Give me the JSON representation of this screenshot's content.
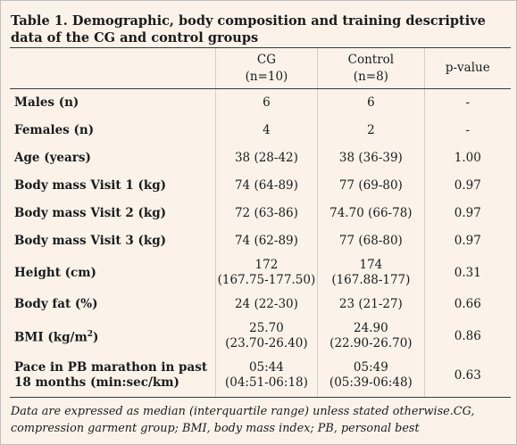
{
  "table": {
    "title": "Table 1. Demographic, body composition and training descriptive data of the CG and control groups",
    "headers": {
      "cg_line1": "CG",
      "cg_line2": "(n=10)",
      "control_line1": "Control",
      "control_line2": "(n=8)",
      "pvalue": "p-value"
    },
    "rows": [
      {
        "label": "Males (n)",
        "cg": "6",
        "control": "6",
        "p": "-"
      },
      {
        "label": "Females (n)",
        "cg": "4",
        "control": "2",
        "p": "-"
      },
      {
        "label": "Age (years)",
        "cg": "38 (28-42)",
        "control": "38 (36-39)",
        "p": "1.00"
      },
      {
        "label": "Body mass Visit 1 (kg)",
        "cg": "74 (64-89)",
        "control": "77 (69-80)",
        "p": "0.97"
      },
      {
        "label": "Body mass Visit 2 (kg)",
        "cg": "72 (63-86)",
        "control": "74.70 (66-78)",
        "p": "0.97"
      },
      {
        "label": "Body mass Visit 3 (kg)",
        "cg": "74 (62-89)",
        "control": "77 (68-80)",
        "p": "0.97"
      },
      {
        "label": "Height (cm)",
        "cg": "172",
        "cg2": "(167.75-177.50)",
        "control": "174",
        "control2": "(167.88-177)",
        "p": "0.31"
      },
      {
        "label": "Body fat (%)",
        "cg": "24 (22-30)",
        "control": "23 (21-27)",
        "p": "0.66"
      },
      {
        "label_main": "BMI (kg/m",
        "label_sup": "2",
        "label_end": ")",
        "cg": "25.70",
        "cg2": "(23.70-26.40)",
        "control": "24.90",
        "control2": "(22.90-26.70)",
        "p": "0.86"
      },
      {
        "label": "Pace in PB marathon in past",
        "label2": "18 months (min:sec/km)",
        "cg": "05:44",
        "cg2": "(04:51-06:18)",
        "control": "05:49",
        "control2": "(05:39-06:48)",
        "p": "0.63"
      }
    ],
    "footnote": "Data are expressed as median (interquartile range) unless stated otherwise.CG, compression garment group; BMI, body mass index; PB, personal best"
  }
}
